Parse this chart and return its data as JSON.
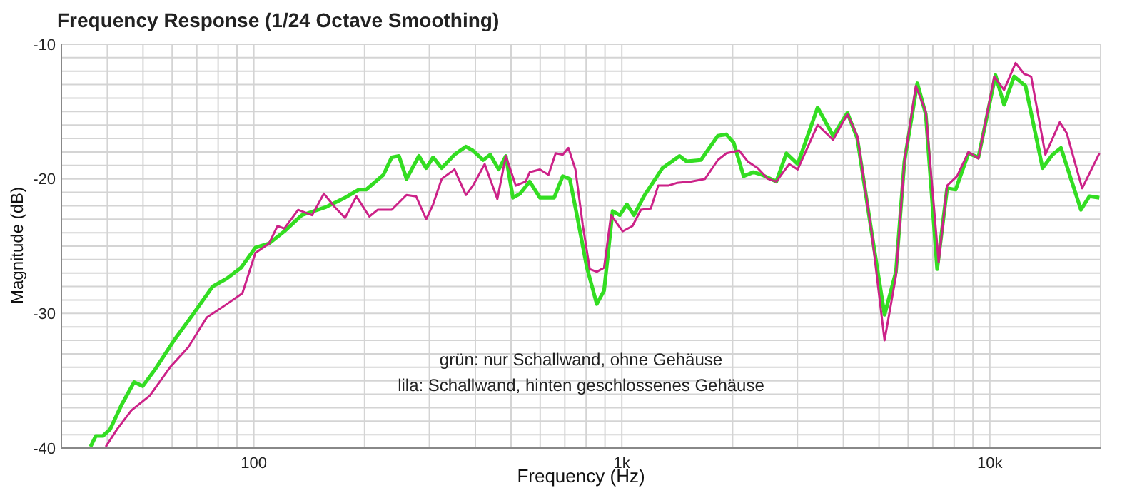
{
  "chart_data": {
    "type": "line",
    "title": "Frequency Response (1/24 Octave Smoothing)",
    "xlabel": "Frequency (Hz)",
    "ylabel": "Magnitude (dB)",
    "annotations": [
      "grün: nur Schallwand, ohne Gehäuse",
      "lila: Schallwand, hinten geschlossenes Gehäuse"
    ],
    "log": "x",
    "grid": true,
    "xlim": [
      30,
      20000
    ],
    "ylim": [
      -40,
      -10
    ],
    "xticks": [
      {
        "value": 40,
        "label": null
      },
      {
        "value": 50,
        "label": null
      },
      {
        "value": 60,
        "label": null
      },
      {
        "value": 70,
        "label": null
      },
      {
        "value": 80,
        "label": null
      },
      {
        "value": 90,
        "label": null
      },
      100,
      {
        "value": 200,
        "label": null
      },
      {
        "value": 300,
        "label": null
      },
      {
        "value": 400,
        "label": null
      },
      {
        "value": 500,
        "label": null
      },
      {
        "value": 600,
        "label": null
      },
      {
        "value": 700,
        "label": null
      },
      {
        "value": 800,
        "label": null
      },
      {
        "value": 900,
        "label": null
      },
      {
        "value": 1000,
        "label": "1k"
      },
      {
        "value": 2000,
        "label": null
      },
      {
        "value": 3000,
        "label": null
      },
      {
        "value": 4000,
        "label": null
      },
      {
        "value": 5000,
        "label": null
      },
      {
        "value": 6000,
        "label": null
      },
      {
        "value": 7000,
        "label": null
      },
      {
        "value": 8000,
        "label": null
      },
      {
        "value": 9000,
        "label": null
      },
      {
        "value": 10000,
        "label": "10k"
      }
    ],
    "yticks": [
      -40,
      {
        "value": -39,
        "label": null
      },
      {
        "value": -38,
        "label": null
      },
      {
        "value": -37,
        "label": null
      },
      {
        "value": -36,
        "label": null
      },
      {
        "value": -35,
        "label": null
      },
      {
        "value": -34,
        "label": null
      },
      {
        "value": -33,
        "label": null
      },
      {
        "value": -32,
        "label": null
      },
      {
        "value": -31,
        "label": null
      },
      -30,
      {
        "value": -29,
        "label": null
      },
      {
        "value": -28,
        "label": null
      },
      {
        "value": -27,
        "label": null
      },
      {
        "value": -26,
        "label": null
      },
      {
        "value": -25,
        "label": null
      },
      {
        "value": -24,
        "label": null
      },
      {
        "value": -23,
        "label": null
      },
      {
        "value": -22,
        "label": null
      },
      {
        "value": -21,
        "label": null
      },
      -20,
      {
        "value": -19,
        "label": null
      },
      {
        "value": -18,
        "label": null
      },
      {
        "value": -17,
        "label": null
      },
      {
        "value": -16,
        "label": null
      },
      {
        "value": -15,
        "label": null
      },
      {
        "value": -14,
        "label": null
      },
      {
        "value": -13,
        "label": null
      },
      {
        "value": -12,
        "label": null
      },
      {
        "value": -11,
        "label": null
      },
      -10
    ],
    "series": [
      {
        "color": "#33dd22",
        "x": [
          36,
          37.2,
          38.9,
          40.7,
          43.7,
          47.3,
          49.9,
          54.1,
          60.7,
          68.2,
          77.3,
          84.5,
          92.3,
          101,
          110,
          121,
          135,
          157,
          177,
          193,
          202,
          225,
          237,
          248,
          260,
          281,
          294,
          307,
          324,
          351,
          377,
          394,
          420,
          439,
          463,
          484,
          506,
          529,
          562,
          599,
          655,
          691,
          722,
          755,
          804,
          855,
          895,
          944,
          987,
          1032,
          1079,
          1148,
          1289,
          1435,
          1500,
          1640,
          1824,
          1923,
          2013,
          2143,
          2280,
          2404,
          2630,
          2800,
          3006,
          3405,
          3750,
          4102,
          4365,
          4775,
          5176,
          5559,
          5861,
          6353,
          6699,
          7194,
          7656,
          8075,
          8750,
          9311,
          10360,
          10930,
          11640,
          12500,
          13910,
          14800,
          15610,
          17680,
          18650,
          19850
        ],
        "values": [
          -39.9,
          -39.1,
          -39.1,
          -38.6,
          -36.8,
          -35.1,
          -35.4,
          -34.1,
          -32.0,
          -30.1,
          -28.0,
          -27.4,
          -26.6,
          -25.1,
          -24.8,
          -23.9,
          -22.7,
          -22.1,
          -21.4,
          -20.8,
          -20.8,
          -19.7,
          -18.4,
          -18.3,
          -20.0,
          -18.3,
          -19.2,
          -18.4,
          -19.2,
          -18.2,
          -17.6,
          -17.9,
          -18.6,
          -18.2,
          -19.3,
          -18.3,
          -21.4,
          -21.1,
          -20.2,
          -21.4,
          -21.4,
          -19.8,
          -20.0,
          -22.7,
          -26.6,
          -29.3,
          -28.3,
          -22.4,
          -22.7,
          -21.9,
          -22.7,
          -21.3,
          -19.2,
          -18.3,
          -18.7,
          -18.6,
          -16.8,
          -16.7,
          -17.3,
          -19.8,
          -19.5,
          -19.7,
          -20.2,
          -18.1,
          -18.9,
          -14.7,
          -16.8,
          -15.1,
          -17.0,
          -24.0,
          -30.1,
          -26.9,
          -18.7,
          -12.9,
          -15.2,
          -26.7,
          -20.7,
          -20.8,
          -18.1,
          -18.4,
          -12.3,
          -14.5,
          -12.4,
          -13.1,
          -19.2,
          -18.2,
          -17.7,
          -22.3,
          -21.3,
          -21.4
        ]
      },
      {
        "color": "#cc2288",
        "x": [
          39.6,
          42.5,
          46.5,
          52.2,
          59.2,
          66.4,
          74.5,
          84.5,
          93.1,
          101,
          110,
          116,
          121,
          132,
          144,
          155,
          166,
          177,
          190,
          206,
          217,
          237,
          260,
          276,
          294,
          307,
          324,
          351,
          377,
          394,
          424,
          459,
          484,
          515,
          548,
          562,
          599,
          632,
          661,
          691,
          716,
          748,
          783,
          818,
          855,
          895,
          935,
          1005,
          1069,
          1127,
          1199,
          1256,
          1337,
          1411,
          1542,
          1683,
          1824,
          1923,
          2084,
          2198,
          2339,
          2495,
          2630,
          2851,
          3006,
          3405,
          3750,
          4102,
          4365,
          4775,
          5176,
          5559,
          5861,
          6295,
          6699,
          7261,
          7656,
          8147,
          8750,
          9311,
          10280,
          10930,
          11750,
          12390,
          12950,
          14160,
          15490,
          16180,
          17820,
          19850
        ],
        "values": [
          -39.9,
          -38.6,
          -37.2,
          -36.1,
          -34.0,
          -32.5,
          -30.3,
          -29.3,
          -28.5,
          -25.5,
          -24.8,
          -23.5,
          -23.7,
          -22.3,
          -22.7,
          -21.1,
          -22.1,
          -22.9,
          -21.3,
          -22.8,
          -22.3,
          -22.3,
          -21.2,
          -21.3,
          -23.0,
          -21.9,
          -20.0,
          -19.3,
          -21.2,
          -20.5,
          -18.9,
          -21.5,
          -18.3,
          -20.5,
          -20.2,
          -19.5,
          -19.3,
          -19.7,
          -18.1,
          -18.2,
          -17.7,
          -19.3,
          -23.4,
          -26.7,
          -26.9,
          -26.6,
          -22.7,
          -23.9,
          -23.5,
          -22.3,
          -22.2,
          -20.5,
          -20.5,
          -20.3,
          -20.2,
          -20.0,
          -18.6,
          -18.1,
          -17.9,
          -18.7,
          -19.2,
          -20.0,
          -20.2,
          -18.9,
          -19.3,
          -16.0,
          -17.1,
          -15.2,
          -16.8,
          -24.0,
          -32.0,
          -27.2,
          -18.7,
          -13.1,
          -15.0,
          -26.2,
          -20.5,
          -19.8,
          -18.0,
          -18.5,
          -12.4,
          -13.4,
          -11.4,
          -12.2,
          -12.4,
          -18.2,
          -15.8,
          -16.6,
          -20.7,
          -18.1
        ]
      }
    ]
  }
}
